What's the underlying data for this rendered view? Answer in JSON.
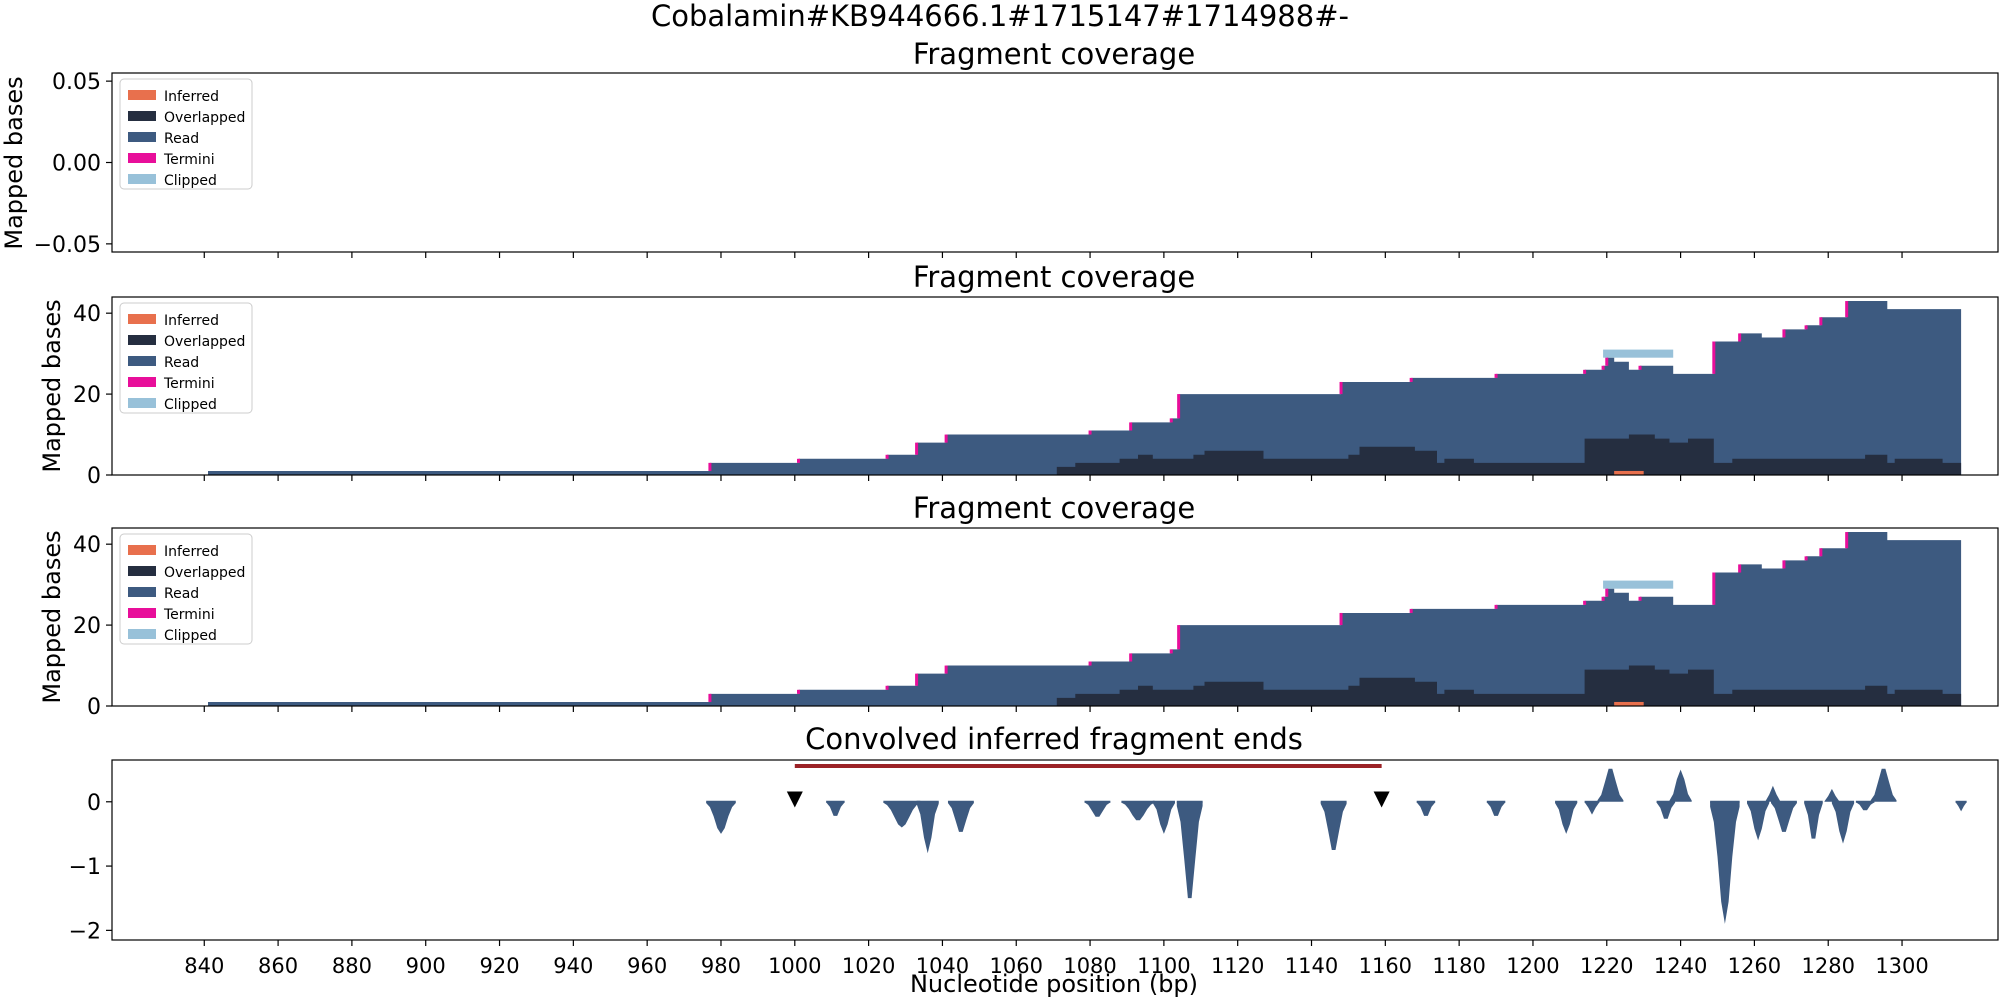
{
  "figure": {
    "title": "Cobalamin#KB944666.1#1715147#1714988#-"
  },
  "colors": {
    "inferred": "#e8704d",
    "overlapped": "#252e40",
    "read": "#3d5a80",
    "termini": "#e80e9a",
    "clipped": "#98c1d9",
    "deletion_bar": "#9b2226",
    "marker": "#000000",
    "conv": "#3d5a80"
  },
  "legend": {
    "entries": [
      {
        "key": "inferred",
        "label": "Inferred"
      },
      {
        "key": "overlapped",
        "label": "Overlapped"
      },
      {
        "key": "read",
        "label": "Read"
      },
      {
        "key": "termini",
        "label": "Termini"
      },
      {
        "key": "clipped",
        "label": "Clipped"
      }
    ],
    "placement": "upper-left"
  },
  "x_axis": {
    "label": "Nucleotide position (bp)",
    "xlim": [
      815,
      1326
    ],
    "ticks": [
      840,
      860,
      880,
      900,
      920,
      940,
      960,
      980,
      1000,
      1020,
      1040,
      1060,
      1080,
      1100,
      1120,
      1140,
      1160,
      1180,
      1200,
      1220,
      1240,
      1260,
      1280,
      1300
    ]
  },
  "chart_data": [
    {
      "type": "area",
      "title": "Fragment coverage",
      "ylabel": "Mapped bases",
      "ylim": [
        -0.055,
        0.055
      ],
      "yticks": [
        "0.05",
        "0.00",
        "−0.05"
      ],
      "yticks_values": [
        0.05,
        0.0,
        -0.05
      ],
      "series": []
    },
    {
      "type": "area",
      "title": "Fragment coverage",
      "ylabel": "Mapped bases",
      "ylim": [
        0,
        44
      ],
      "yticks": [
        "0",
        "20",
        "40"
      ],
      "yticks_values": [
        0,
        20,
        40
      ],
      "read_steps": [
        [
          841,
          1
        ],
        [
          977,
          3
        ],
        [
          1001,
          4
        ],
        [
          1025,
          5
        ],
        [
          1033,
          8
        ],
        [
          1041,
          10
        ],
        [
          1080,
          11
        ],
        [
          1091,
          13
        ],
        [
          1102,
          14
        ],
        [
          1104,
          20
        ],
        [
          1148,
          23
        ],
        [
          1167,
          24
        ],
        [
          1190,
          25
        ],
        [
          1214,
          26
        ],
        [
          1219,
          27
        ],
        [
          1220,
          29
        ],
        [
          1222,
          28
        ],
        [
          1226,
          26
        ],
        [
          1229,
          27
        ],
        [
          1238,
          25
        ],
        [
          1249,
          33
        ],
        [
          1256,
          35
        ],
        [
          1262,
          34
        ],
        [
          1268,
          36
        ],
        [
          1274,
          37
        ],
        [
          1278,
          39
        ],
        [
          1285,
          43
        ],
        [
          1296,
          41
        ],
        [
          1316,
          41
        ]
      ],
      "overlapped_steps": [
        [
          1071,
          2
        ],
        [
          1076,
          3
        ],
        [
          1088,
          4
        ],
        [
          1093,
          5
        ],
        [
          1097,
          4
        ],
        [
          1108,
          5
        ],
        [
          1111,
          6
        ],
        [
          1127,
          4
        ],
        [
          1150,
          5
        ],
        [
          1153,
          7
        ],
        [
          1168,
          6
        ],
        [
          1174,
          3
        ],
        [
          1176,
          4
        ],
        [
          1184,
          3
        ],
        [
          1214,
          9
        ],
        [
          1226,
          10
        ],
        [
          1233,
          9
        ],
        [
          1237,
          8
        ],
        [
          1242,
          9
        ],
        [
          1249,
          3
        ],
        [
          1254,
          4
        ],
        [
          1290,
          5
        ],
        [
          1296,
          3
        ],
        [
          1298,
          4
        ],
        [
          1311,
          3
        ],
        [
          1316,
          3
        ]
      ],
      "inferred": [
        {
          "start": 1222,
          "end": 1230,
          "value": 1
        }
      ],
      "clipped_cap": [
        {
          "start": 1219,
          "end": 1238,
          "value": 2
        }
      ]
    },
    {
      "type": "area",
      "title": "Fragment coverage",
      "ylabel": "Mapped bases",
      "ylim": [
        0,
        44
      ],
      "yticks": [
        "0",
        "20",
        "40"
      ],
      "yticks_values": [
        0,
        20,
        40
      ],
      "same_as_panel": 1
    },
    {
      "type": "bar",
      "title": "Convolved inferred fragment ends",
      "ylabel": "",
      "ylim": [
        -2.15,
        0.65
      ],
      "yticks": [
        "0",
        "−1",
        "−2"
      ],
      "yticks_values": [
        0,
        -1,
        -2
      ],
      "deletion": {
        "start": 1000,
        "end": 1159
      },
      "markers": [
        1000,
        1159
      ],
      "bins": [
        {
          "center": 980,
          "width": 8,
          "depth": 0.5
        },
        {
          "center": 1011,
          "width": 5,
          "depth": 0.25
        },
        {
          "center": 1029,
          "width": 10,
          "depth": 0.4
        },
        {
          "center": 1036,
          "width": 6,
          "depth": 0.8
        },
        {
          "center": 1045,
          "width": 7,
          "depth": 0.5
        },
        {
          "center": 1082,
          "width": 7,
          "depth": 0.25
        },
        {
          "center": 1093,
          "width": 9,
          "depth": 0.3
        },
        {
          "center": 1100,
          "width": 6,
          "depth": 0.5
        },
        {
          "center": 1107,
          "width": 7,
          "depth": 1.6
        },
        {
          "center": 1146,
          "width": 7,
          "depth": 0.8
        },
        {
          "center": 1171,
          "width": 5,
          "depth": 0.25
        },
        {
          "center": 1190,
          "width": 5,
          "depth": 0.25
        },
        {
          "center": 1209,
          "width": 6,
          "depth": 0.5
        },
        {
          "center": 1216,
          "width": 4,
          "depth": 0.2
        },
        {
          "center": 1236,
          "width": 5,
          "depth": 0.3
        },
        {
          "center": 1252,
          "width": 8,
          "depth": 1.9
        },
        {
          "center": 1261,
          "width": 6,
          "depth": 0.6
        },
        {
          "center": 1268,
          "width": 7,
          "depth": 0.5
        },
        {
          "center": 1276,
          "width": 5,
          "depth": 0.65
        },
        {
          "center": 1284,
          "width": 6,
          "depth": 0.65
        },
        {
          "center": 1290,
          "width": 5,
          "depth": 0.15
        },
        {
          "center": 1316,
          "width": 3,
          "depth": 0.15
        }
      ],
      "peaks": [
        {
          "center": 1221,
          "width": 7,
          "height": 0.55
        },
        {
          "center": 1240,
          "width": 6,
          "height": 0.5
        },
        {
          "center": 1265,
          "width": 4,
          "height": 0.25
        },
        {
          "center": 1281,
          "width": 4,
          "height": 0.2
        },
        {
          "center": 1295,
          "width": 7,
          "height": 0.55
        }
      ]
    }
  ]
}
